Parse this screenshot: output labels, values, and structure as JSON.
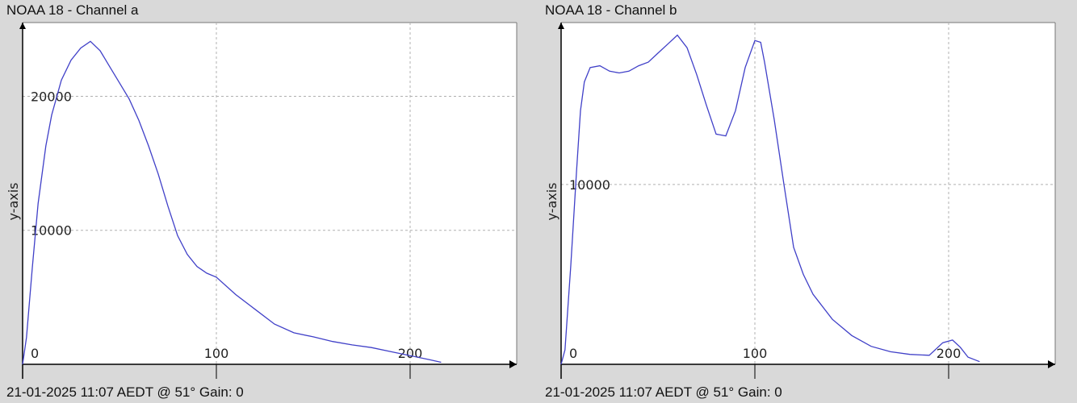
{
  "charts": [
    {
      "title": "NOAA 18 - Channel a",
      "caption": "21-01-2025 11:07 AEDT @ 51° Gain: 0",
      "chart_data": {
        "type": "line",
        "title": "NOAA 18 - Channel a",
        "xlabel": "",
        "ylabel": "y-axis",
        "xlim": [
          0,
          255
        ],
        "ylim": [
          0,
          25500
        ],
        "x_ticks": [
          0,
          100,
          200
        ],
        "y_ticks": [
          10000,
          20000
        ],
        "grid": true,
        "line_color": "#4040c8",
        "series": [
          {
            "x": [
              0,
              2,
              5,
              8,
              12,
              15,
              20,
              25,
              30,
              35,
              40,
              45,
              50,
              55,
              60,
              65,
              70,
              75,
              80,
              85,
              90,
              95,
              100,
              110,
              120,
              130,
              140,
              150,
              160,
              170,
              180,
              190,
              200,
              210,
              216
            ],
            "values": [
              0,
              2000,
              7200,
              12000,
              16300,
              18600,
              21200,
              22700,
              23600,
              24100,
              23400,
              22200,
              21000,
              19800,
              18200,
              16300,
              14200,
              11800,
              9600,
              8200,
              7300,
              6800,
              6500,
              5200,
              4100,
              3000,
              2350,
              2050,
              1700,
              1450,
              1250,
              950,
              650,
              350,
              150
            ]
          }
        ]
      }
    },
    {
      "title": "NOAA 18 - Channel b",
      "caption": "21-01-2025 11:07 AEDT @ 51° Gain: 0",
      "chart_data": {
        "type": "line",
        "title": "NOAA 18 - Channel b",
        "xlabel": "",
        "ylabel": "y-axis",
        "xlim": [
          0,
          255
        ],
        "ylim": [
          0,
          19000
        ],
        "x_ticks": [
          0,
          100,
          200
        ],
        "y_ticks": [
          10000
        ],
        "grid": true,
        "line_color": "#4040c8",
        "series": [
          {
            "x": [
              0,
              2,
              5,
              8,
              10,
              12,
              15,
              20,
              25,
              30,
              35,
              40,
              45,
              50,
              55,
              60,
              65,
              70,
              75,
              80,
              85,
              90,
              95,
              100,
              103,
              105,
              110,
              115,
              120,
              125,
              130,
              140,
              150,
              160,
              170,
              180,
              190,
              197,
              202,
              206,
              210,
              216
            ],
            "values": [
              0,
              800,
              5500,
              10800,
              14100,
              15700,
              16500,
              16600,
              16300,
              16200,
              16300,
              16600,
              16800,
              17300,
              17800,
              18300,
              17600,
              16100,
              14400,
              12800,
              12700,
              14100,
              16500,
              18000,
              17900,
              16800,
              13600,
              10000,
              6500,
              5000,
              3900,
              2500,
              1600,
              1000,
              700,
              550,
              500,
              1200,
              1350,
              950,
              400,
              150
            ]
          }
        ]
      }
    }
  ]
}
